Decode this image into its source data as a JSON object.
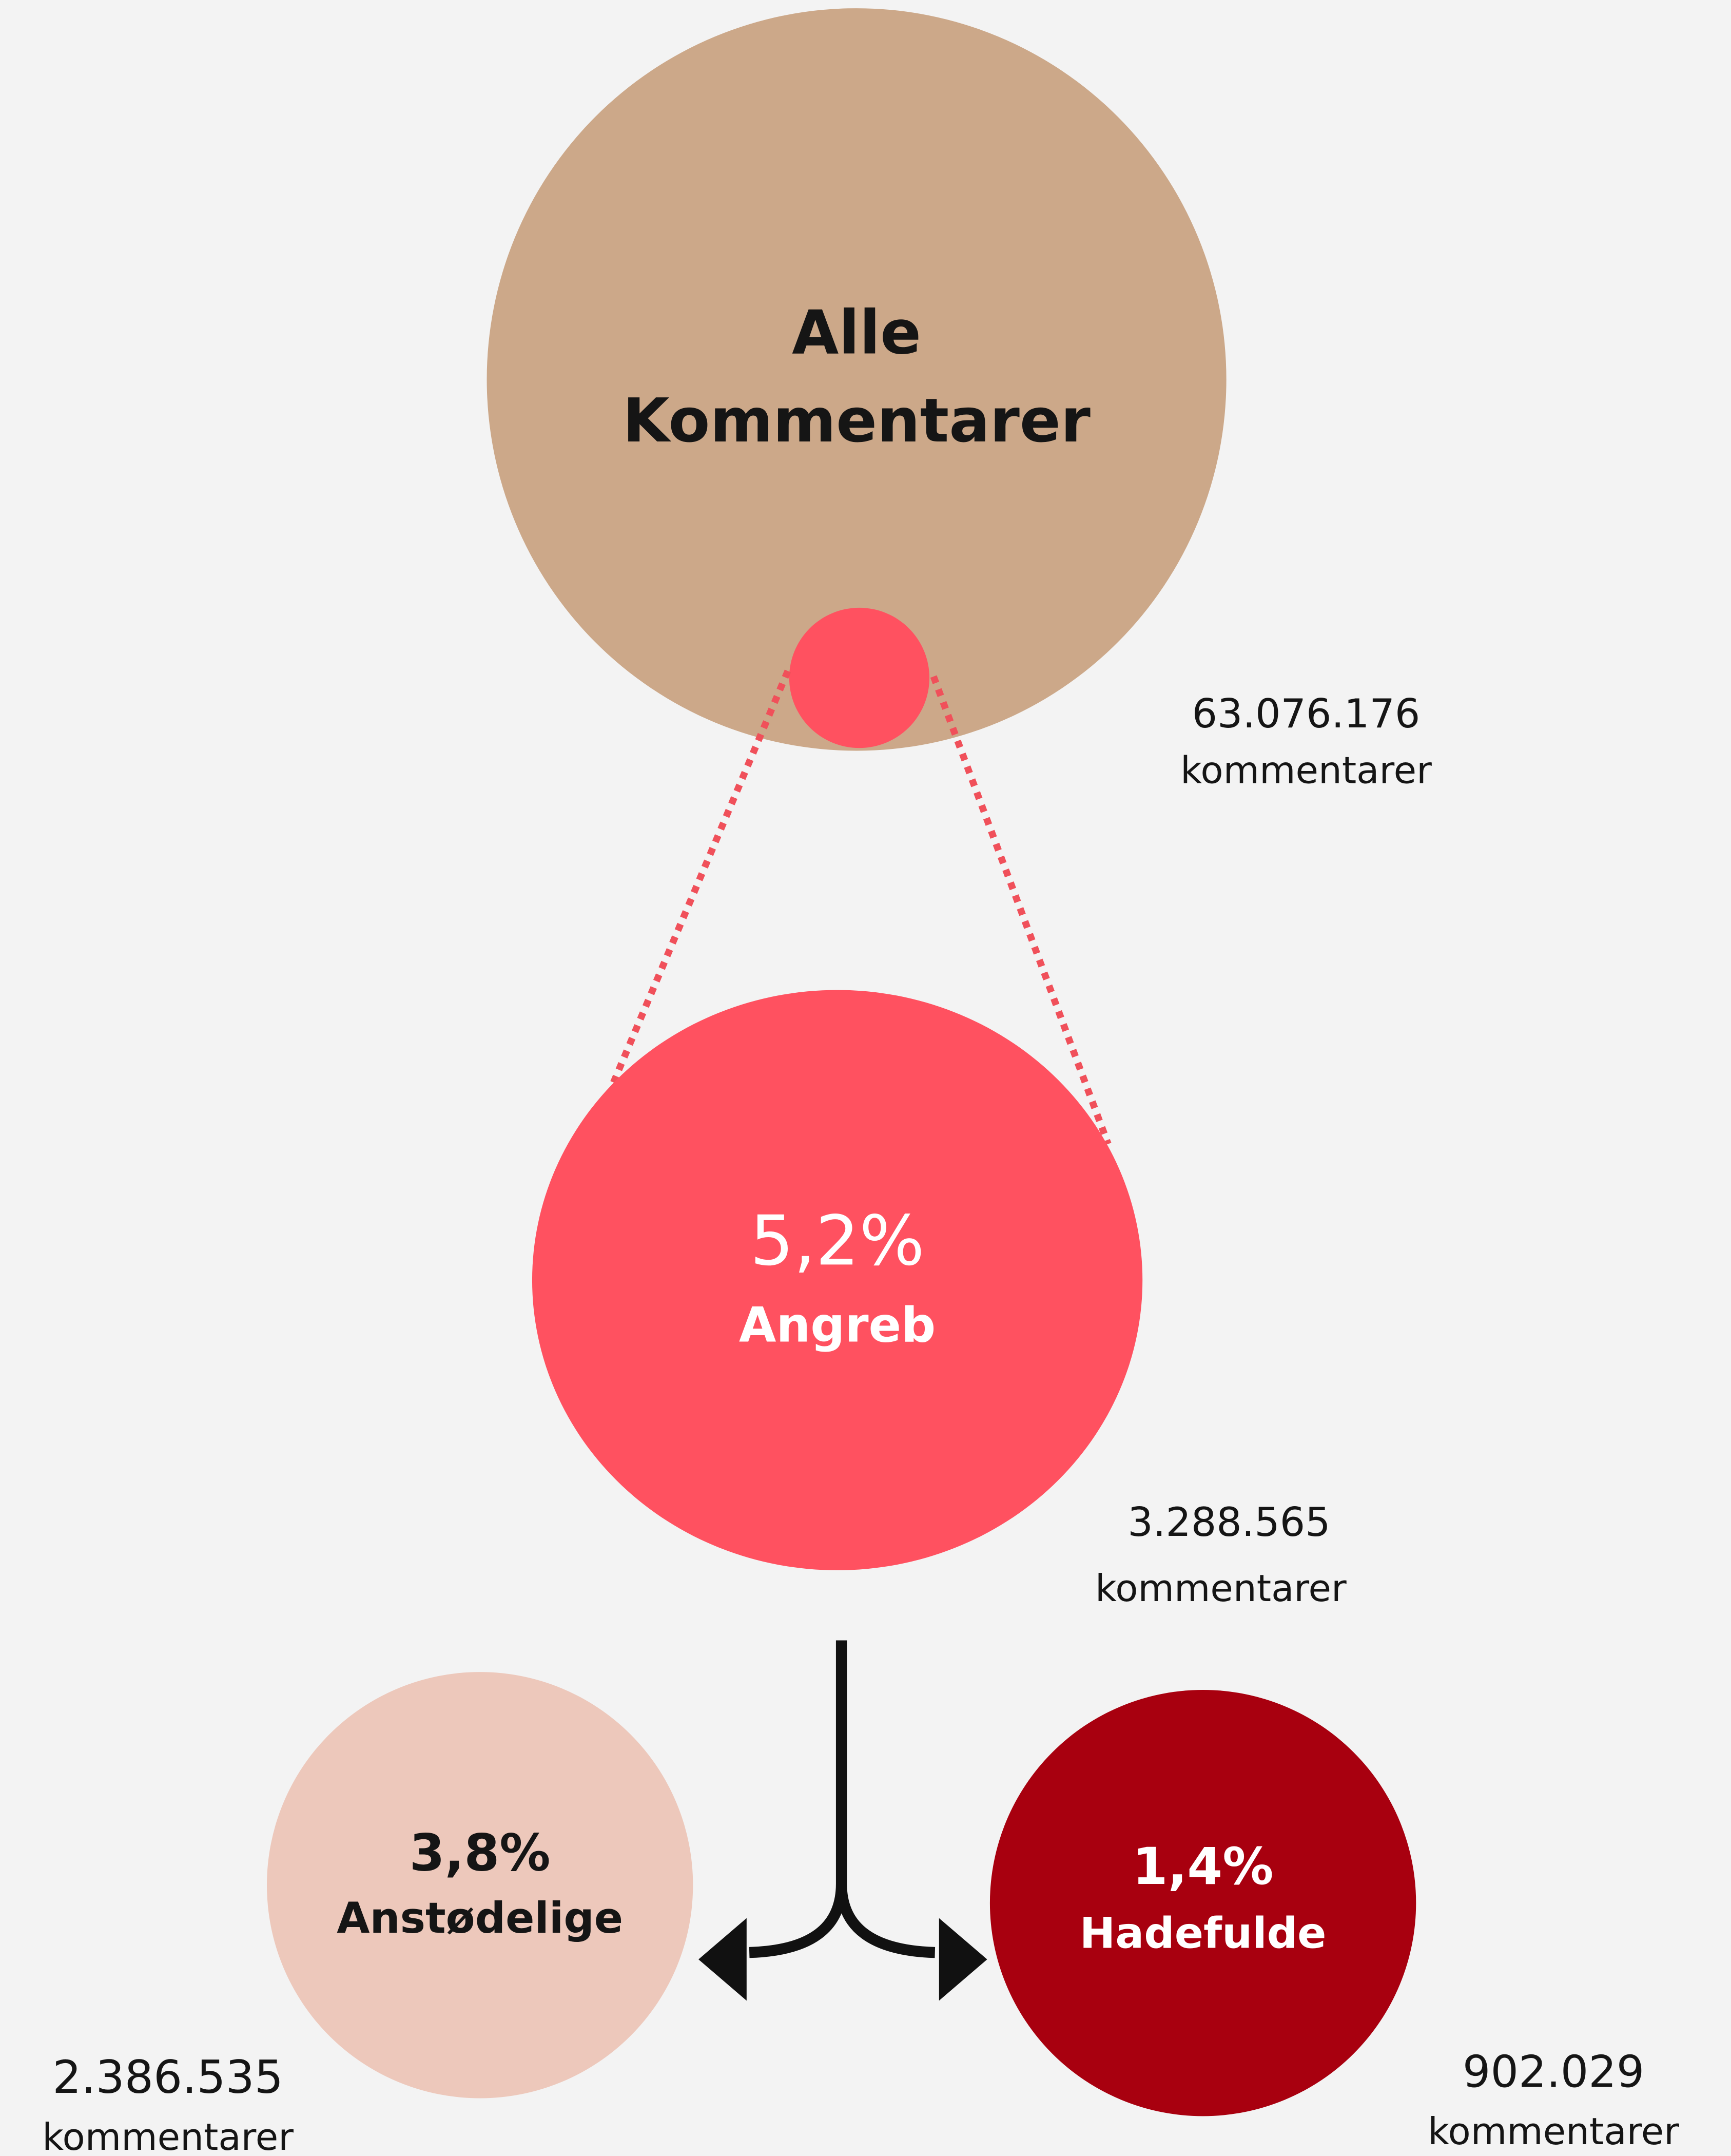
{
  "nodes": [
    {
      "label_lines": [
        "Alle",
        "Kommentarer"
      ],
      "count": "63.076.176",
      "unit": "kommentarer"
    },
    {
      "percent": "5,2%",
      "label": "Angreb",
      "count": "3.288.565",
      "unit": "kommentarer"
    },
    {
      "percent": "3,8%",
      "label": "Anstødelige",
      "count": "2.386.535",
      "unit": "kommentarer"
    },
    {
      "percent": "1,4%",
      "label": "Hadefulde",
      "count": "902.029",
      "unit": "kommentarer"
    }
  ]
}
